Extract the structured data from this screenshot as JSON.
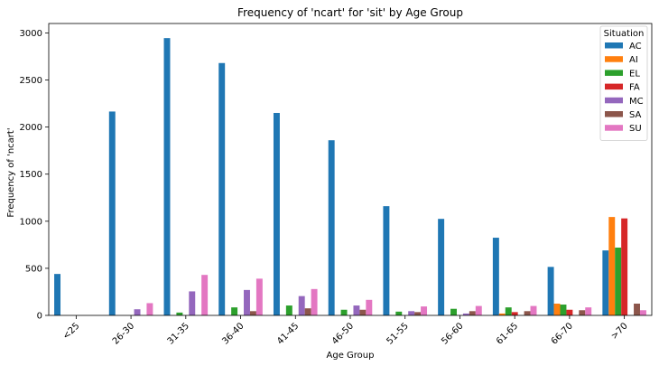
{
  "chart_data": {
    "type": "bar",
    "title": "Frequency of 'ncart' for 'sit' by Age Group",
    "xlabel": "Age Group",
    "ylabel": "Frequency of 'ncart'",
    "ylim": [
      0,
      3100
    ],
    "yticks": [
      0,
      500,
      1000,
      1500,
      2000,
      2500,
      3000
    ],
    "grid": false,
    "legend": {
      "title": "Situation",
      "placement": "top-right"
    },
    "categories": [
      "<25",
      "26-30",
      "31-35",
      "36-40",
      "41-45",
      "46-50",
      "51-55",
      "56-60",
      "61-65",
      "66-70",
      ">70"
    ],
    "series": [
      {
        "name": "AC",
        "color": "#1f77b4",
        "values": [
          440,
          2165,
          2945,
          2680,
          2150,
          1860,
          1160,
          1025,
          825,
          515,
          690
        ]
      },
      {
        "name": "AI",
        "color": "#ff7f0e",
        "values": [
          0,
          0,
          0,
          0,
          0,
          0,
          0,
          0,
          20,
          125,
          1045
        ]
      },
      {
        "name": "EL",
        "color": "#2ca02c",
        "values": [
          0,
          0,
          30,
          85,
          105,
          60,
          40,
          70,
          85,
          115,
          720
        ]
      },
      {
        "name": "FA",
        "color": "#d62728",
        "values": [
          0,
          0,
          0,
          0,
          0,
          0,
          0,
          0,
          35,
          60,
          1030
        ]
      },
      {
        "name": "MC",
        "color": "#9467bd",
        "values": [
          0,
          65,
          255,
          270,
          205,
          105,
          45,
          20,
          0,
          0,
          0
        ]
      },
      {
        "name": "SA",
        "color": "#8c564b",
        "values": [
          0,
          0,
          0,
          45,
          75,
          60,
          35,
          45,
          45,
          55,
          125
        ]
      },
      {
        "name": "SU",
        "color": "#e377c2",
        "values": [
          0,
          130,
          430,
          390,
          280,
          165,
          95,
          100,
          100,
          85,
          55
        ]
      }
    ]
  }
}
